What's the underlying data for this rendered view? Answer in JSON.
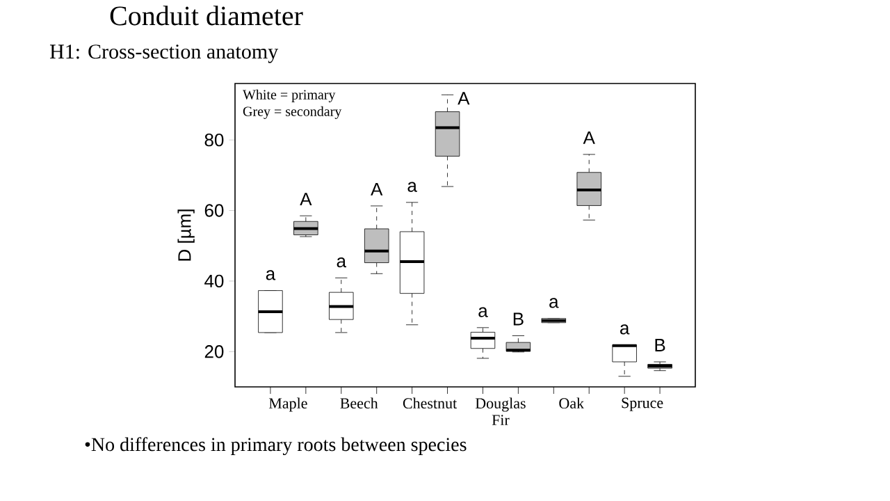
{
  "chart_data": {
    "type": "box",
    "title": "Conduit diameter",
    "subtitle": "H1: Cross-section anatomy",
    "ylabel": "D [µm]",
    "categories": [
      "Maple",
      "Beech",
      "Chestnut",
      "Douglas Fir",
      "Oak",
      "Spruce"
    ],
    "series": [
      {
        "color": "#ffffff",
        "value_labels": [
          "a",
          "a",
          "a",
          "a",
          "a",
          "a"
        ],
        "boxes": [
          {
            "low": 25.4,
            "q1": 25.4,
            "median": 31.3,
            "q3": 37.3,
            "high": 37.3
          },
          {
            "low": 25.4,
            "q1": 29.1,
            "median": 32.8,
            "q3": 36.8,
            "high": 40.9
          },
          {
            "low": 27.6,
            "q1": 36.5,
            "median": 45.5,
            "q3": 54.0,
            "high": 62.3
          },
          {
            "low": 18.1,
            "q1": 20.9,
            "median": 23.8,
            "q3": 25.5,
            "high": 26.8
          },
          {
            "low": 28.2,
            "q1": 28.2,
            "median": 28.8,
            "q3": 29.4,
            "high": 29.4
          },
          {
            "low": 13.0,
            "q1": 17.1,
            "median": 21.7,
            "q3": 21.9,
            "high": 21.9
          }
        ]
      },
      {
        "color": "#bebebe",
        "value_labels": [
          "A",
          "A",
          "A",
          "B",
          "A",
          "B"
        ],
        "boxes": [
          {
            "low": 52.6,
            "q1": 53.1,
            "median": 54.9,
            "q3": 56.9,
            "high": 58.5
          },
          {
            "low": 42.1,
            "q1": 45.2,
            "median": 48.5,
            "q3": 54.8,
            "high": 61.3
          },
          {
            "low": 66.8,
            "q1": 75.4,
            "median": 83.5,
            "q3": 88.0,
            "high": 92.8
          },
          {
            "low": 19.9,
            "q1": 20.1,
            "median": 20.4,
            "q3": 22.6,
            "high": 24.5
          },
          {
            "low": 57.3,
            "q1": 61.4,
            "median": 65.8,
            "q3": 70.8,
            "high": 75.9
          },
          {
            "low": 14.6,
            "q1": 15.3,
            "median": 15.9,
            "q3": 16.4,
            "high": 17.1
          }
        ]
      }
    ],
    "ylim": [
      10,
      96
    ],
    "yticks": [
      20,
      40,
      60,
      80
    ],
    "grid": false,
    "annotations": [
      "White = primary",
      "Grey = secondary",
      "•No differences in primary roots between species"
    ]
  }
}
